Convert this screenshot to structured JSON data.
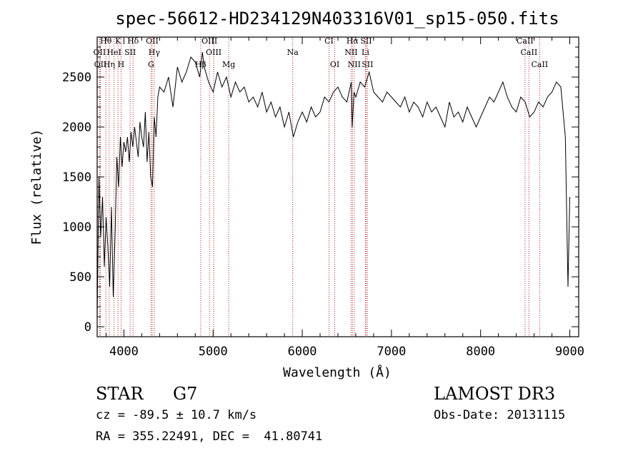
{
  "chart_data": {
    "type": "line",
    "title": "spec-56612-HD234129N403316V01_sp15-050.fits",
    "xlabel": "Wavelength (Å)",
    "ylabel": "Flux (relative)",
    "xlim": [
      3700,
      9100
    ],
    "ylim": [
      -100,
      2900
    ],
    "xticks": [
      4000,
      5000,
      6000,
      7000,
      8000,
      9000
    ],
    "yticks": [
      0,
      500,
      1000,
      1500,
      2000,
      2500
    ],
    "grid": false,
    "series": [
      {
        "x": [
          3700,
          3720,
          3740,
          3760,
          3780,
          3800,
          3820,
          3840,
          3860,
          3880,
          3900,
          3920,
          3940,
          3960,
          3980,
          4000,
          4020,
          4040,
          4060,
          4080,
          4100,
          4120,
          4140,
          4160,
          4180,
          4200,
          4220,
          4240,
          4260,
          4280,
          4300,
          4320,
          4340,
          4360,
          4380,
          4400,
          4450,
          4500,
          4550,
          4600,
          4650,
          4700,
          4750,
          4800,
          4850,
          4880,
          4900,
          4950,
          5000,
          5050,
          5100,
          5150,
          5200,
          5250,
          5300,
          5350,
          5400,
          5450,
          5500,
          5550,
          5600,
          5650,
          5700,
          5750,
          5800,
          5850,
          5900,
          5950,
          6000,
          6050,
          6100,
          6150,
          6200,
          6250,
          6300,
          6350,
          6400,
          6450,
          6500,
          6550,
          6560,
          6580,
          6600,
          6650,
          6700,
          6750,
          6800,
          6850,
          6900,
          6950,
          7000,
          7050,
          7100,
          7150,
          7200,
          7250,
          7300,
          7350,
          7400,
          7450,
          7500,
          7550,
          7600,
          7650,
          7700,
          7750,
          7800,
          7850,
          7900,
          7950,
          8000,
          8050,
          8100,
          8150,
          8200,
          8250,
          8300,
          8350,
          8400,
          8450,
          8500,
          8550,
          8600,
          8650,
          8700,
          8750,
          8800,
          8850,
          8900,
          8950,
          8980,
          9000
        ],
        "y": [
          100,
          1500,
          900,
          1300,
          600,
          1100,
          800,
          400,
          1200,
          300,
          900,
          1700,
          1400,
          1900,
          1600,
          1850,
          1750,
          1900,
          1650,
          1950,
          1800,
          2000,
          1850,
          1700,
          2050,
          1900,
          1800,
          2150,
          1650,
          1950,
          1500,
          1400,
          2100,
          1900,
          2300,
          2400,
          2350,
          2500,
          2200,
          2600,
          2450,
          2550,
          2700,
          2650,
          2500,
          2750,
          2600,
          2450,
          2350,
          2550,
          2400,
          2500,
          2300,
          2450,
          2350,
          2400,
          2250,
          2300,
          2200,
          2350,
          2150,
          2250,
          2100,
          2200,
          2000,
          2150,
          1900,
          2050,
          2150,
          2050,
          2200,
          2100,
          2150,
          2300,
          2250,
          2350,
          2400,
          2300,
          2250,
          2450,
          2000,
          2350,
          2300,
          2450,
          2400,
          2550,
          2350,
          2300,
          2250,
          2350,
          2300,
          2250,
          2200,
          2300,
          2150,
          2250,
          2200,
          2100,
          2250,
          2150,
          2200,
          2100,
          2000,
          2250,
          2100,
          2150,
          2050,
          2200,
          2100,
          2000,
          2100,
          2200,
          2300,
          2250,
          2350,
          2450,
          2300,
          2200,
          2150,
          2300,
          2250,
          2100,
          2150,
          2250,
          2200,
          2300,
          2350,
          2450,
          2400,
          1900,
          400,
          1300
        ]
      }
    ],
    "line_marks": [
      {
        "label": "Hθ",
        "wl": 3798,
        "row": 0
      },
      {
        "label": "K",
        "wl": 3934,
        "row": 0
      },
      {
        "label": "Hδ",
        "wl": 4102,
        "row": 0
      },
      {
        "label": "OII",
        "wl": 4317,
        "row": 0
      },
      {
        "label": "OIII",
        "wl": 4959,
        "row": 0
      },
      {
        "label": "CI",
        "wl": 6300,
        "row": 0
      },
      {
        "label": "Hα",
        "wl": 6563,
        "row": 0
      },
      {
        "label": "SII",
        "wl": 6716,
        "row": 0
      },
      {
        "label": "CaII",
        "wl": 8498,
        "row": 0
      },
      {
        "label": "OII",
        "wl": 3727,
        "row": 1
      },
      {
        "label": "HeI",
        "wl": 3889,
        "row": 1
      },
      {
        "label": "SII",
        "wl": 4070,
        "row": 1
      },
      {
        "label": "Hγ",
        "wl": 4340,
        "row": 1
      },
      {
        "label": "OIII",
        "wl": 5007,
        "row": 1
      },
      {
        "label": "Na",
        "wl": 5893,
        "row": 1
      },
      {
        "label": "NII",
        "wl": 6548,
        "row": 1
      },
      {
        "label": "Li",
        "wl": 6708,
        "row": 1
      },
      {
        "label": "CaII",
        "wl": 8542,
        "row": 1
      },
      {
        "label": "OII",
        "wl": 3736,
        "row": 2
      },
      {
        "label": "Hη",
        "wl": 3835,
        "row": 2
      },
      {
        "label": "H",
        "wl": 3968,
        "row": 2
      },
      {
        "label": "G",
        "wl": 4304,
        "row": 2
      },
      {
        "label": "Hβ",
        "wl": 4861,
        "row": 2
      },
      {
        "label": "Mg",
        "wl": 5175,
        "row": 2
      },
      {
        "label": "OI",
        "wl": 6364,
        "row": 2
      },
      {
        "label": "NII",
        "wl": 6583,
        "row": 2
      },
      {
        "label": "SII",
        "wl": 6731,
        "row": 2
      },
      {
        "label": "CaII",
        "wl": 8662,
        "row": 2
      }
    ]
  },
  "info": {
    "object_class": "STAR",
    "subclass": "G7",
    "survey": "LAMOST DR3",
    "cz": "cz = -89.5 ± 10.7 km/s",
    "obs_date": "Obs-Date: 20131115",
    "coords": "RA = 355.22491, DEC =  41.80741"
  }
}
